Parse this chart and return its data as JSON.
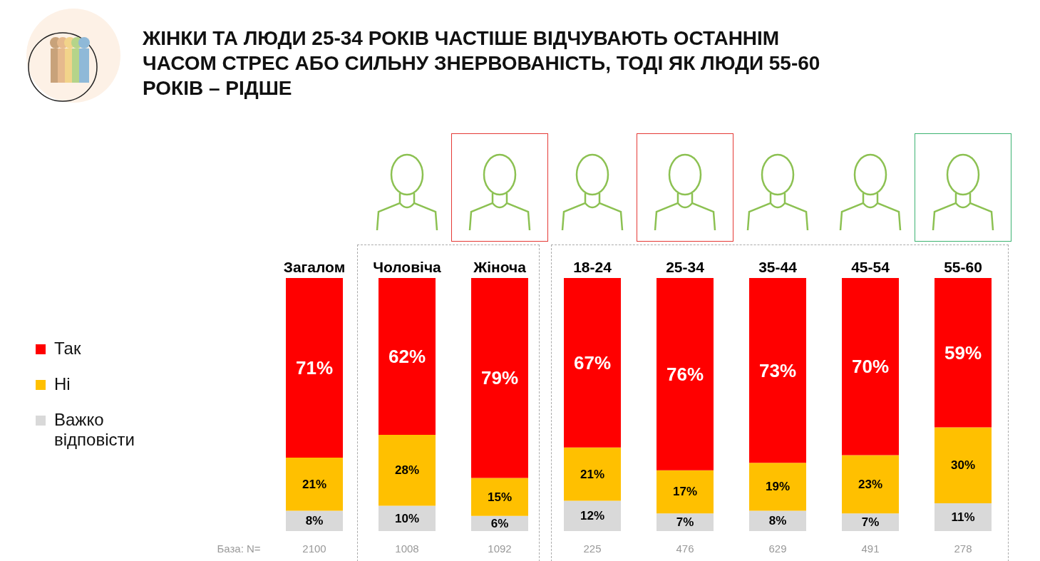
{
  "chart_data": {
    "type": "bar",
    "stacked": true,
    "title": "ЖІНКИ ТА ЛЮДИ 25-34 РОКІВ ЧАСТІШЕ ВІДЧУВАЮТЬ ОСТАННІМ ЧАСОМ СТРЕС АБО СИЛЬНУ ЗНЕРВОВАНІСТЬ, ТОДІ ЯК ЛЮДИ 55-60 РОКІВ – РІДШЕ",
    "categories": [
      "Загалом",
      "Чоловіча",
      "Жіноча",
      "18-24",
      "25-34",
      "35-44",
      "45-54",
      "55-60"
    ],
    "series": [
      {
        "name": "Важко відповісти",
        "color": "#d9d9d9",
        "values": [
          8,
          10,
          6,
          12,
          7,
          8,
          7,
          11
        ],
        "value_labels": [
          "8%",
          "10%",
          "6%",
          "12%",
          "7%",
          "8%",
          "7%",
          "11%"
        ]
      },
      {
        "name": "Ні",
        "color": "#ffc000",
        "values": [
          21,
          28,
          15,
          21,
          17,
          19,
          23,
          30
        ],
        "value_labels": [
          "21%",
          "28%",
          "15%",
          "21%",
          "17%",
          "19%",
          "23%",
          "30%"
        ]
      },
      {
        "name": "Так",
        "color": "#ff0000",
        "values": [
          71,
          62,
          79,
          67,
          76,
          73,
          70,
          59
        ],
        "value_labels": [
          "71%",
          "62%",
          "79%",
          "67%",
          "76%",
          "73%",
          "70%",
          "59%"
        ]
      }
    ],
    "legend": "left",
    "annotations": [
      "База: N=",
      "2100",
      "1008",
      "1092",
      "225",
      "476",
      "629",
      "491",
      "278"
    ]
  }
}
